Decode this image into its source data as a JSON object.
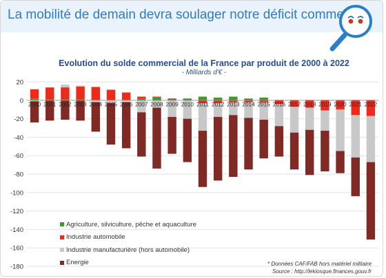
{
  "banner": {
    "title": "La mobilité de demain devra soulager notre déficit commercial"
  },
  "notes": {
    "source_note": "* Données CAF/FAB hors matériel militaire",
    "source_url": "Source : http://lekiosque.finances.gouv.fr"
  },
  "colors": {
    "banner_bg": "#eaf2fb",
    "title_blue": "#2e7cc4",
    "agriculture": "#3a9a2e",
    "automobile": "#ee2a1c",
    "manufacturing": "#c8c8c8",
    "energy": "#7f2a24"
  },
  "icons": {
    "mascot": "magnifying-glass-mascot-icon"
  },
  "chart_data": {
    "type": "bar",
    "stacked": true,
    "title": "Evolution du solde commercial de la France par produit de 2000 à 2022",
    "subtitle": "- Milliards d'€ -",
    "xlabel": "",
    "ylabel": "",
    "ylim": [
      -180,
      20
    ],
    "yticks": [
      20,
      0,
      -20,
      -40,
      -60,
      -80,
      -100,
      -120,
      -140,
      -160,
      -180
    ],
    "grid": true,
    "legend_position": "bottom-left",
    "categories": [
      "2000",
      "2001",
      "2002",
      "2003",
      "2004",
      "2005",
      "2006",
      "2007",
      "2008",
      "2009",
      "2010",
      "2011",
      "2012",
      "2013",
      "2014",
      "2015",
      "2016",
      "2017",
      "2018",
      "2019",
      "2020",
      "2021",
      "2022"
    ],
    "series": [
      {
        "name": "Agriculture, silviculture, pêche et aquaculture",
        "color": "#3a9a2e",
        "values": [
          2,
          1,
          1,
          1,
          0.5,
          0.5,
          0.5,
          2,
          3,
          1,
          2,
          4,
          3,
          4,
          2,
          3,
          0.5,
          0.5,
          0.5,
          0.5,
          0.5,
          0.5,
          0.5
        ]
      },
      {
        "name": "Industrie automobile",
        "color": "#ee2a1c",
        "values": [
          10,
          13,
          13,
          14,
          14,
          11,
          8,
          2,
          1,
          1,
          0,
          -3,
          -3,
          -2,
          -2,
          -2,
          -4,
          -7,
          -8,
          -11,
          -10,
          -16,
          -17
        ]
      },
      {
        "name": "Industrie manufacturière (hors automobile)",
        "color": "#c8c8c8",
        "values": [
          -1,
          0,
          3,
          1,
          -2,
          -3,
          -2,
          -13,
          -8,
          -18,
          -20,
          -30,
          -15,
          -14,
          -17,
          -19,
          -24,
          -28,
          -24,
          -22,
          -45,
          -46,
          -50
        ]
      },
      {
        "name": "Energie",
        "color": "#7f2a24",
        "values": [
          -23,
          -22,
          -21,
          -22,
          -32,
          -45,
          -50,
          -48,
          -66,
          -40,
          -47,
          -61,
          -69,
          -67,
          -56,
          -42,
          -33,
          -40,
          -49,
          -44,
          -24,
          -42,
          -84
        ]
      }
    ]
  }
}
